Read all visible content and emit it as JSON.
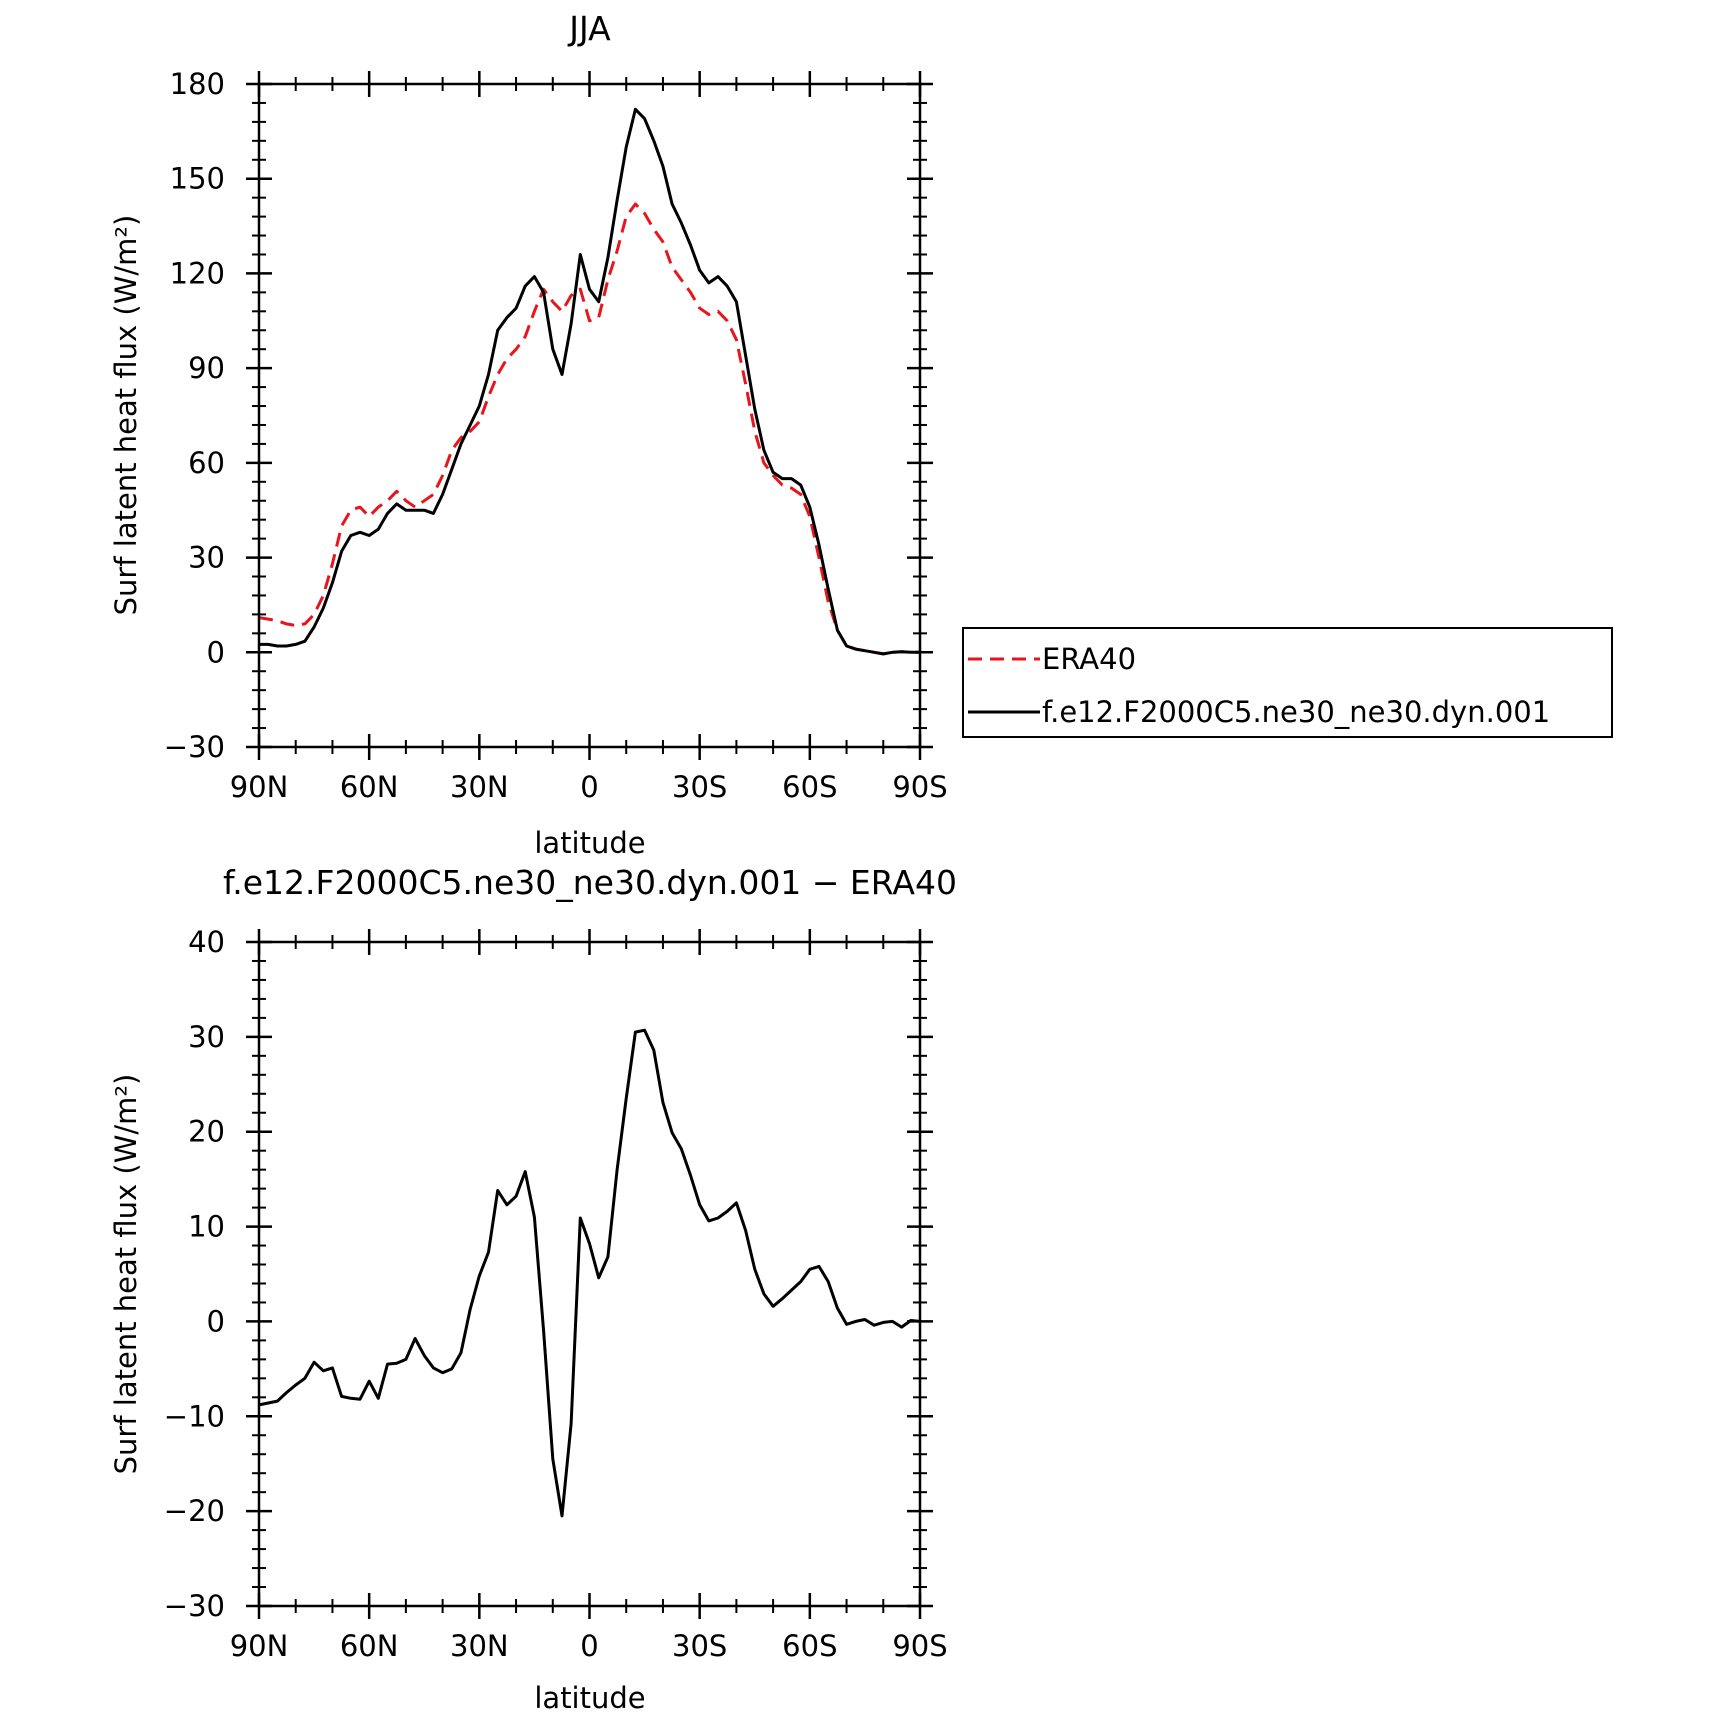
{
  "chart_data": [
    {
      "type": "line",
      "title": "JJA",
      "xlabel": "latitude",
      "ylabel": "Surf latent heat flux (W/m²)",
      "xlim": [
        -90,
        90
      ],
      "ylim": [
        -30,
        180
      ],
      "x_tick_values": [
        -90,
        -60,
        -30,
        0,
        30,
        60,
        90
      ],
      "x_tick_labels": [
        "90N",
        "60N",
        "30N",
        "0",
        "30S",
        "60S",
        "90S"
      ],
      "y_tick_values": [
        -30,
        0,
        30,
        60,
        90,
        120,
        150,
        180
      ],
      "y_tick_labels": [
        "−30",
        "0",
        "30",
        "60",
        "90",
        "120",
        "150",
        "180"
      ],
      "legend_position": "right",
      "series": [
        {
          "name": "ERA40",
          "color": "#e8161c",
          "style": "dashed",
          "x": [
            -90,
            -87.5,
            -85,
            -82.5,
            -80,
            -77.5,
            -75,
            -72.5,
            -70,
            -67.5,
            -65,
            -62.5,
            -60,
            -57.5,
            -55,
            -52.5,
            -50,
            -47.5,
            -45,
            -42.5,
            -40,
            -37.5,
            -35,
            -32.5,
            -30,
            -27.5,
            -25,
            -22.5,
            -20,
            -17.5,
            -15,
            -12.5,
            -10,
            -7.5,
            -5,
            -2.5,
            0,
            2.5,
            5,
            7.5,
            10,
            12.5,
            15,
            17.5,
            20,
            22.5,
            25,
            27.5,
            30,
            32.5,
            35,
            37.5,
            40,
            42.5,
            45,
            47.5,
            50,
            52.5,
            55,
            57.5,
            60,
            62.5,
            65,
            67.5,
            70,
            72.5,
            75,
            77.5,
            80,
            82.5,
            85,
            87.5,
            90
          ],
          "y": [
            11,
            10.5,
            10,
            9,
            8.5,
            9,
            12,
            18,
            28,
            40,
            45,
            46,
            43,
            46,
            48,
            51,
            48,
            46,
            48,
            50,
            56,
            64,
            68,
            70,
            73,
            81,
            88,
            93,
            96,
            100,
            108,
            115,
            111,
            108,
            113,
            115,
            105,
            106,
            118,
            127,
            138,
            142,
            139,
            134,
            130,
            122,
            118,
            114,
            109,
            107,
            108,
            105,
            99,
            85,
            70,
            60,
            56,
            53,
            52,
            50,
            43,
            30,
            16,
            7,
            2,
            1,
            0.5,
            0,
            -0.5,
            0,
            0.2,
            0,
            0
          ]
        },
        {
          "name": "f.e12.F2000C5.ne30_ne30.dyn.001",
          "color": "#000000",
          "style": "solid",
          "x": [
            -90,
            -87.5,
            -85,
            -82.5,
            -80,
            -77.5,
            -75,
            -72.5,
            -70,
            -67.5,
            -65,
            -62.5,
            -60,
            -57.5,
            -55,
            -52.5,
            -50,
            -47.5,
            -45,
            -42.5,
            -40,
            -37.5,
            -35,
            -32.5,
            -30,
            -27.5,
            -25,
            -22.5,
            -20,
            -17.5,
            -15,
            -12.5,
            -10,
            -7.5,
            -5,
            -2.5,
            0,
            2.5,
            5,
            7.5,
            10,
            12.5,
            15,
            17.5,
            20,
            22.5,
            25,
            27.5,
            30,
            32.5,
            35,
            37.5,
            40,
            42.5,
            45,
            47.5,
            50,
            52.5,
            55,
            57.5,
            60,
            62.5,
            65,
            67.5,
            70,
            72.5,
            75,
            77.5,
            80,
            82.5,
            85,
            87.5,
            90
          ],
          "y": [
            2.5,
            2.5,
            2,
            2,
            2.5,
            3.5,
            8,
            14,
            22,
            32,
            37,
            38,
            37,
            39,
            44,
            47,
            45,
            45,
            45,
            44,
            50,
            58,
            66,
            72,
            78,
            88,
            102,
            106,
            109,
            116,
            119,
            114,
            96,
            88,
            104,
            126,
            115,
            111,
            125,
            143,
            160,
            172,
            169,
            162,
            154,
            142,
            136,
            129,
            121,
            117,
            119,
            116,
            111,
            94,
            77,
            64,
            57,
            55,
            55,
            53,
            46,
            34,
            20,
            7,
            2,
            1,
            0.5,
            0,
            -0.5,
            0,
            0.2,
            0,
            0
          ]
        }
      ]
    },
    {
      "type": "line",
      "title": "f.e12.F2000C5.ne30_ne30.dyn.001 − ERA40",
      "xlabel": "latitude",
      "ylabel": "Surf latent heat flux (W/m²)",
      "xlim": [
        -90,
        90
      ],
      "ylim": [
        -30,
        40
      ],
      "x_tick_values": [
        -90,
        -60,
        -30,
        0,
        30,
        60,
        90
      ],
      "x_tick_labels": [
        "90N",
        "60N",
        "30N",
        "0",
        "30S",
        "60S",
        "90S"
      ],
      "y_tick_values": [
        -30,
        -20,
        -10,
        0,
        10,
        20,
        30,
        40
      ],
      "y_tick_labels": [
        "−30",
        "−20",
        "−10",
        "0",
        "10",
        "20",
        "30",
        "40"
      ],
      "series": [
        {
          "color": "#000000",
          "style": "solid",
          "x": [
            -90,
            -87.5,
            -85,
            -82.5,
            -80,
            -77.5,
            -75,
            -72.5,
            -70,
            -67.5,
            -65,
            -62.5,
            -60,
            -57.5,
            -55,
            -52.5,
            -50,
            -47.5,
            -45,
            -42.5,
            -40,
            -37.5,
            -35,
            -32.5,
            -30,
            -27.5,
            -25,
            -22.5,
            -20,
            -17.5,
            -15,
            -12.5,
            -10,
            -7.5,
            -5,
            -2.5,
            0,
            2.5,
            5,
            7.5,
            10,
            12.5,
            15,
            17.5,
            20,
            22.5,
            25,
            27.5,
            30,
            32.5,
            35,
            37.5,
            40,
            42.5,
            45,
            47.5,
            50,
            52.5,
            55,
            57.5,
            60,
            62.5,
            65,
            67.5,
            70,
            72.5,
            75,
            77.5,
            80,
            82.5,
            85,
            87.5,
            90
          ],
          "y": [
            -8.8,
            -8.6,
            -8.4,
            -7.5,
            -6.7,
            -6,
            -4.3,
            -5.2,
            -4.9,
            -7.9,
            -8.1,
            -8.2,
            -6.3,
            -8.1,
            -4.5,
            -4.4,
            -4,
            -1.8,
            -3.6,
            -4.9,
            -5.4,
            -5,
            -3.3,
            1.3,
            4.8,
            7.3,
            13.8,
            12.3,
            13.2,
            15.8,
            11,
            -1,
            -14.5,
            -20.5,
            -10.8,
            10.9,
            8.2,
            4.6,
            6.8,
            15.9,
            23.5,
            30.5,
            30.7,
            28.6,
            23.1,
            19.9,
            18.2,
            15.4,
            12.3,
            10.6,
            10.9,
            11.6,
            12.5,
            9.6,
            5.5,
            2.9,
            1.6,
            2.4,
            3.3,
            4.2,
            5.5,
            5.8,
            4.2,
            1.4,
            -0.3,
            0,
            0.2,
            -0.4,
            -0.1,
            0,
            -0.6,
            0.1,
            0
          ]
        }
      ]
    }
  ]
}
